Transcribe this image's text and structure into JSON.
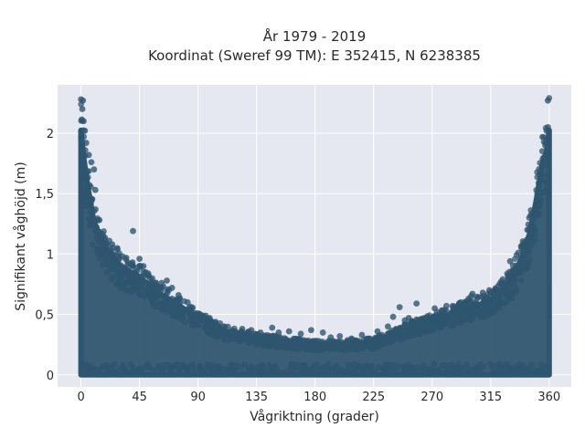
{
  "chart_data": {
    "type": "scatter",
    "title": [
      "År 1979 - 2019",
      "Koordinat (Sweref 99 TM): E 352415, N 6238385"
    ],
    "xlabel": "Vågriktning (grader)",
    "ylabel": "Signifikant våghöjd (m)",
    "xlim": [
      -18,
      377
    ],
    "ylim": [
      -0.1,
      2.4
    ],
    "xticks": [
      0,
      45,
      90,
      135,
      180,
      225,
      270,
      315,
      360
    ],
    "xtick_labels": [
      "0",
      "45",
      "90",
      "135",
      "180",
      "225",
      "270",
      "315",
      "360"
    ],
    "yticks": [
      0,
      0.5,
      1,
      1.5,
      2
    ],
    "ytick_labels": [
      "0",
      "0,5",
      "1",
      "1,5",
      "2"
    ],
    "grid": true,
    "legend": "none",
    "colors": {
      "marker": "#2f566f",
      "plot_bg": "#e5e8f0",
      "grid": "#ffffff"
    },
    "envelope": {
      "direction": [
        0,
        2,
        5,
        10,
        20,
        30,
        45,
        60,
        70,
        90,
        110,
        135,
        160,
        180,
        200,
        225,
        250,
        270,
        290,
        315,
        330,
        340,
        345,
        350,
        355,
        358,
        360
      ],
      "height_upper": [
        2.25,
        2.0,
        1.75,
        1.4,
        1.15,
        1.0,
        0.9,
        0.75,
        0.68,
        0.52,
        0.4,
        0.34,
        0.3,
        0.28,
        0.28,
        0.3,
        0.42,
        0.5,
        0.58,
        0.68,
        0.85,
        1.1,
        1.3,
        1.6,
        1.95,
        2.05,
        2.25
      ]
    },
    "points": [
      [
        0,
        2.28
      ],
      [
        1,
        2.2
      ],
      [
        1.5,
        2.27
      ],
      [
        2,
        2.1
      ],
      [
        3,
        2.02
      ],
      [
        4,
        1.92
      ],
      [
        6,
        1.82
      ],
      [
        8,
        1.76
      ],
      [
        10,
        1.7
      ],
      [
        11,
        1.53
      ],
      [
        8,
        1.45
      ],
      [
        12,
        1.28
      ],
      [
        13,
        1.18
      ],
      [
        19,
        1.08
      ],
      [
        24,
        1.08
      ],
      [
        28,
        1.04
      ],
      [
        32,
        0.98
      ],
      [
        39,
        0.92
      ],
      [
        40,
        0.9
      ],
      [
        42,
        0.86
      ],
      [
        40,
        1.19
      ],
      [
        45,
        0.96
      ],
      [
        48,
        0.9
      ],
      [
        53,
        0.8
      ],
      [
        62,
        0.76
      ],
      [
        66,
        0.78
      ],
      [
        70,
        0.72
      ],
      [
        75,
        0.66
      ],
      [
        82,
        0.6
      ],
      [
        88,
        0.5
      ],
      [
        95,
        0.46
      ],
      [
        103,
        0.41
      ],
      [
        110,
        0.4
      ],
      [
        116,
        0.37
      ],
      [
        124,
        0.38
      ],
      [
        131,
        0.37
      ],
      [
        138,
        0.35
      ],
      [
        147,
        0.39
      ],
      [
        152,
        0.35
      ],
      [
        160,
        0.36
      ],
      [
        169,
        0.34
      ],
      [
        177,
        0.37
      ],
      [
        186,
        0.35
      ],
      [
        192,
        0.31
      ],
      [
        199,
        0.32
      ],
      [
        208,
        0.3
      ],
      [
        216,
        0.33
      ],
      [
        222,
        0.3
      ],
      [
        228,
        0.36
      ],
      [
        236,
        0.4
      ],
      [
        245,
        0.56
      ],
      [
        249,
        0.45
      ],
      [
        252,
        0.47
      ],
      [
        258,
        0.59
      ],
      [
        266,
        0.4
      ],
      [
        272,
        0.55
      ],
      [
        281,
        0.57
      ],
      [
        285,
        0.48
      ],
      [
        292,
        0.6
      ],
      [
        298,
        0.63
      ],
      [
        301,
        0.67
      ],
      [
        309,
        0.68
      ],
      [
        314,
        0.7
      ],
      [
        318,
        0.62
      ],
      [
        324,
        0.68
      ],
      [
        329,
        0.74
      ],
      [
        334,
        0.87
      ],
      [
        338,
        0.92
      ],
      [
        342,
        1.0
      ],
      [
        346,
        1.18
      ],
      [
        348,
        1.28
      ],
      [
        351,
        1.5
      ],
      [
        354,
        1.64
      ],
      [
        356,
        1.8
      ],
      [
        357,
        1.9
      ],
      [
        358,
        2.02
      ],
      [
        359,
        2.05
      ],
      [
        359,
        2.27
      ],
      [
        330,
        0.94
      ],
      [
        300,
        0.65
      ],
      [
        20,
        0.92
      ],
      [
        27,
        0.88
      ],
      [
        60,
        0.72
      ],
      [
        85,
        0.55
      ],
      [
        250,
        0.38
      ],
      [
        240,
        0.48
      ],
      [
        262,
        0.44
      ],
      [
        275,
        0.5
      ]
    ]
  }
}
